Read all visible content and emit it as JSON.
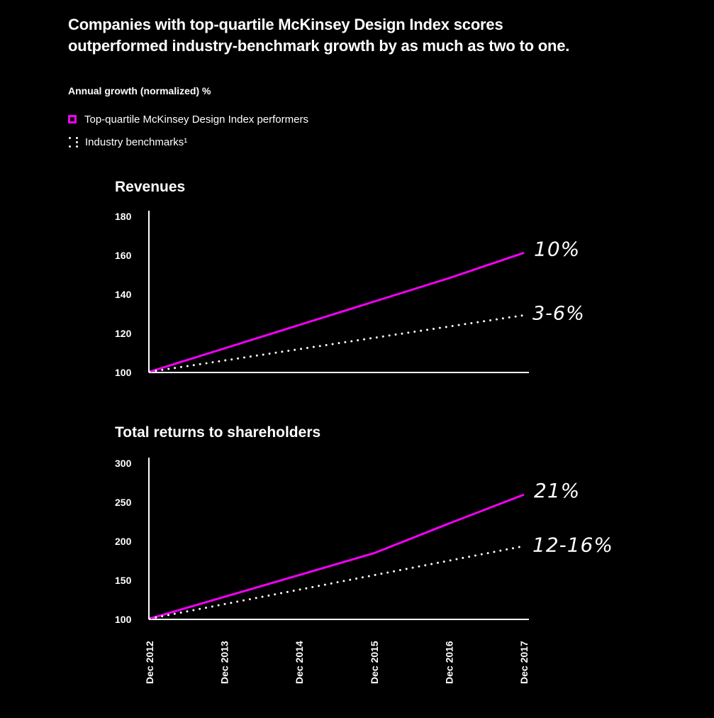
{
  "header": {
    "title_line1": "Companies with top-quartile McKinsey Design Index scores",
    "title_line2": "outperformed industry-benchmark growth by as much as two to one.",
    "subtitle": "Annual growth (normalized) %"
  },
  "legend": {
    "top_quartile": "Top-quartile McKinsey Design Index performers",
    "benchmark": "Industry benchmarks¹"
  },
  "colors": {
    "background": "#000000",
    "accent": "#f200f5",
    "text": "#ffffff"
  },
  "chart_data": [
    {
      "type": "line",
      "title": "Revenues",
      "categories": [
        "Dec 2012",
        "Dec 2013",
        "Dec 2014",
        "Dec 2015",
        "Dec 2016",
        "Dec 2017"
      ],
      "ylim": [
        100,
        180
      ],
      "yticks": [
        100,
        120,
        140,
        160,
        180
      ],
      "series": [
        {
          "name": "Top-quartile McKinsey Design Index performers",
          "values": [
            100,
            112,
            124,
            136,
            148,
            161
          ],
          "end_label": "10%",
          "style": "solid"
        },
        {
          "name": "Industry benchmarks¹",
          "values": [
            100,
            105.8,
            111.6,
            117.4,
            123.2,
            129
          ],
          "end_label": "3-6%",
          "style": "dotted"
        }
      ]
    },
    {
      "type": "line",
      "title": "Total returns to shareholders",
      "categories": [
        "Dec 2012",
        "Dec 2013",
        "Dec 2014",
        "Dec 2015",
        "Dec 2016",
        "Dec 2017"
      ],
      "ylim": [
        100,
        300
      ],
      "yticks": [
        100,
        150,
        200,
        250,
        300
      ],
      "series": [
        {
          "name": "Top-quartile McKinsey Design Index performers",
          "values": [
            100,
            128,
            156,
            184,
            222,
            259
          ],
          "end_label": "21%",
          "style": "solid"
        },
        {
          "name": "Industry benchmarks¹",
          "values": [
            100,
            118.6,
            137.2,
            155.8,
            174.4,
            193
          ],
          "end_label": "12-16%",
          "style": "dotted"
        }
      ]
    }
  ]
}
